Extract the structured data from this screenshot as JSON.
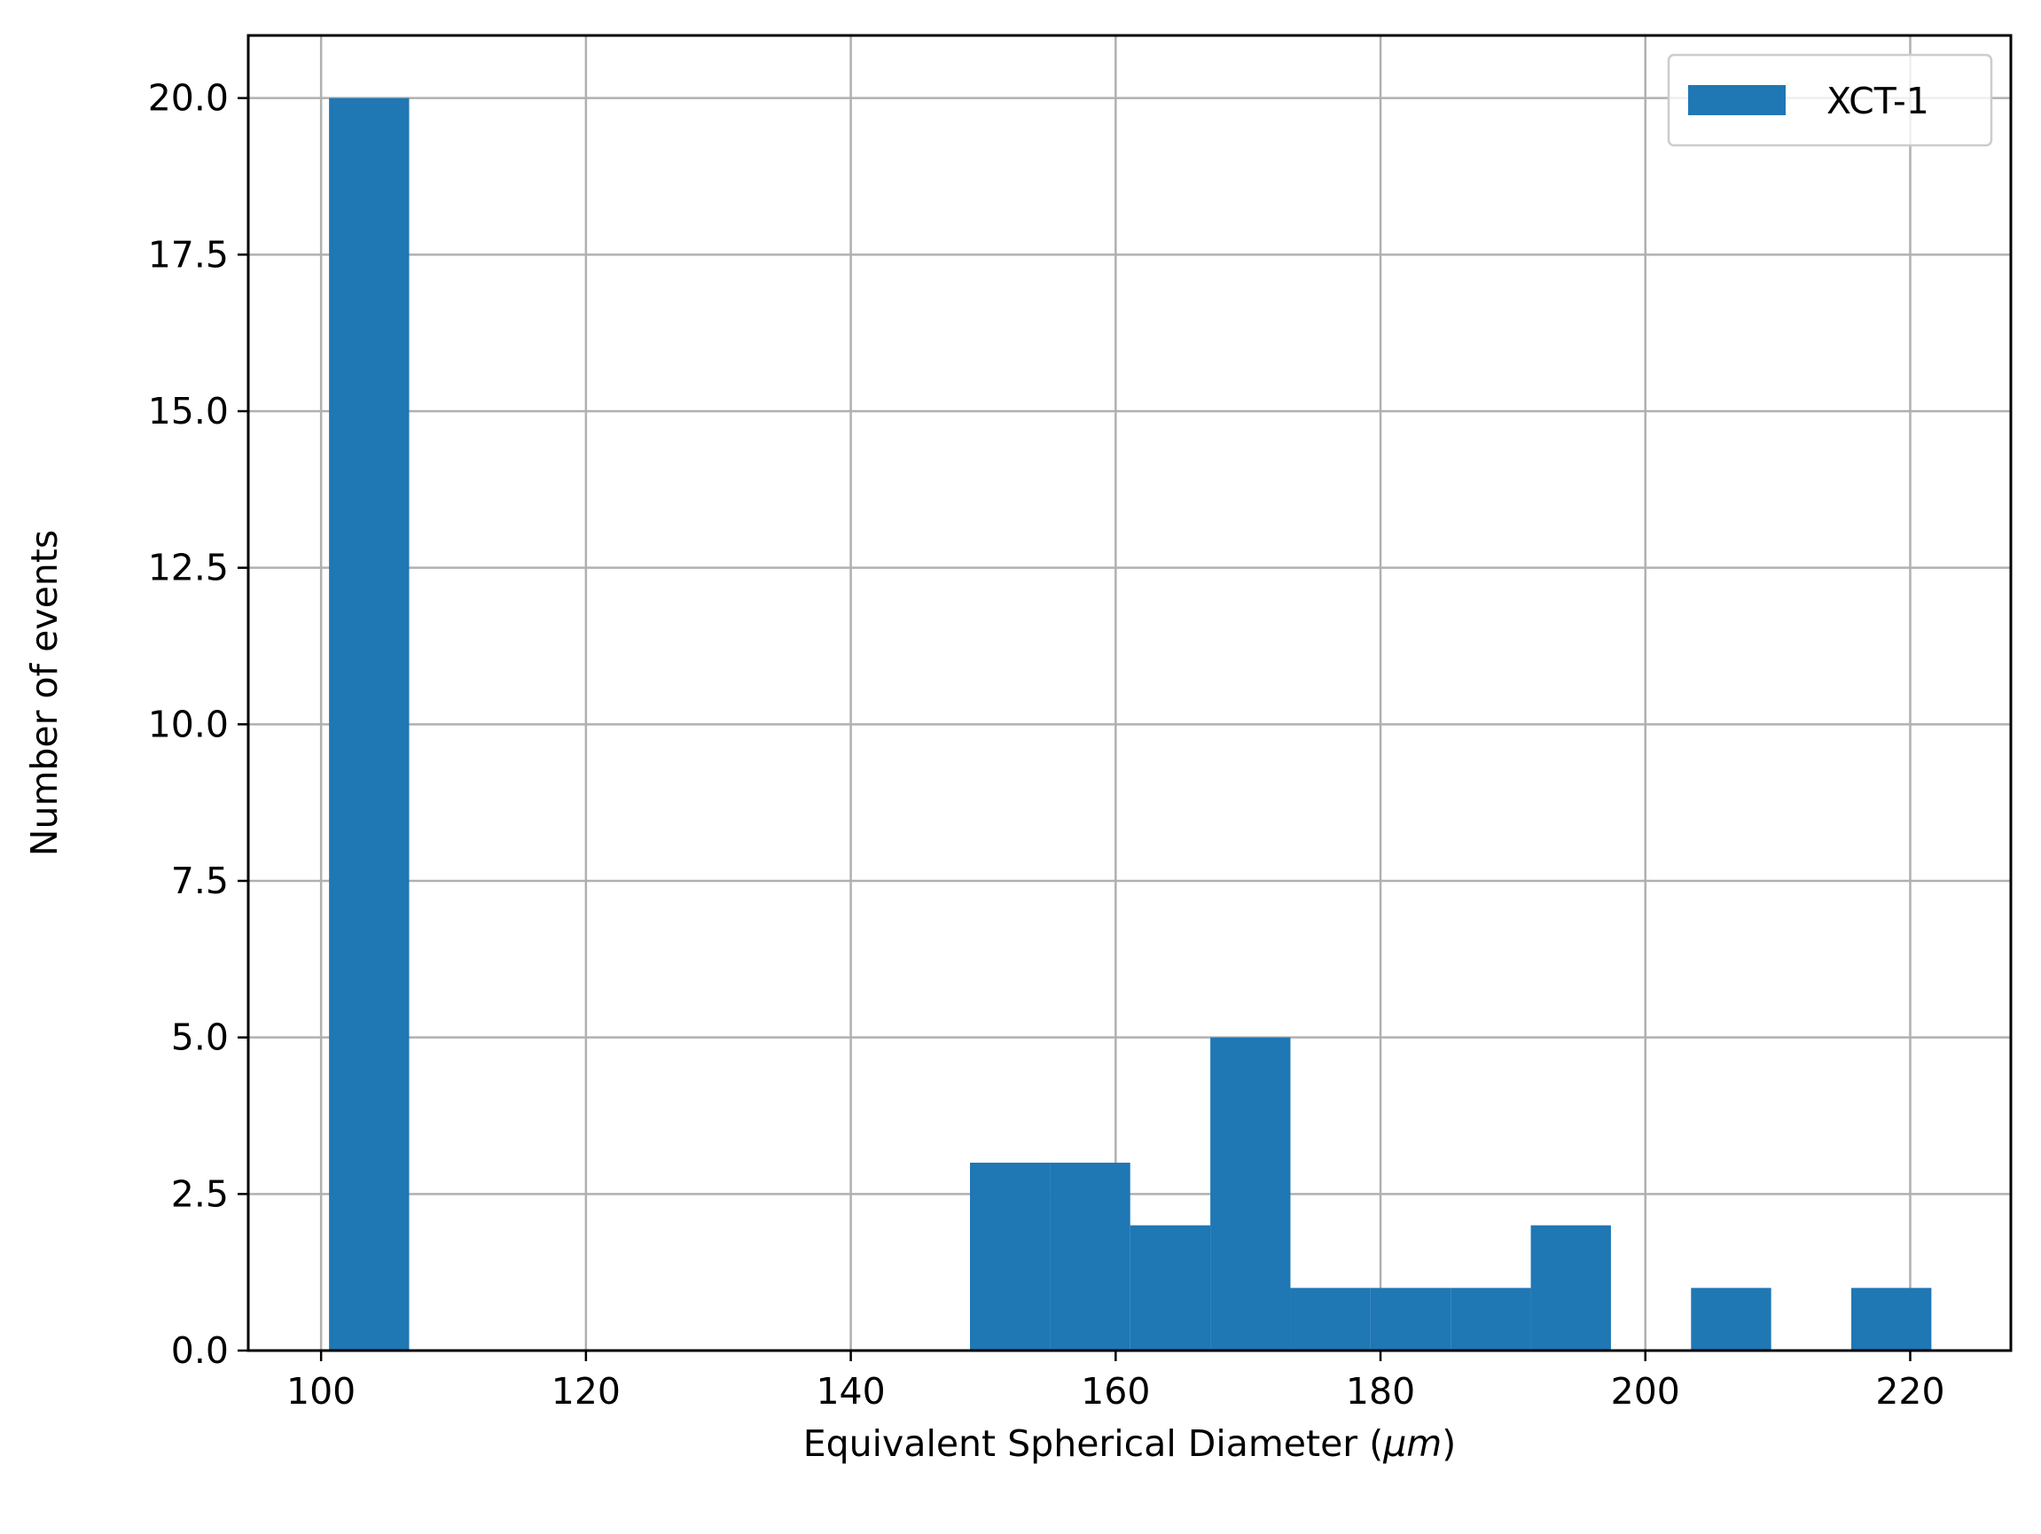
{
  "chart_data": {
    "type": "bar",
    "title": "",
    "xlabel": "Equivalent Spherical Diameter (",
    "xlabel_unit": "μm",
    "xlabel_close": ")",
    "ylabel": "Number of events",
    "xlim": [
      94.5,
      227.6
    ],
    "ylim": [
      0,
      21
    ],
    "grid": true,
    "x_ticks": [
      100,
      120,
      140,
      160,
      180,
      200,
      220
    ],
    "y_ticks": [
      0.0,
      2.5,
      5.0,
      7.5,
      10.0,
      12.5,
      15.0,
      17.5,
      20.0
    ],
    "x_tick_labels": [
      "100",
      "120",
      "140",
      "160",
      "180",
      "200",
      "220"
    ],
    "y_tick_labels": [
      "0.0",
      "2.5",
      "5.0",
      "7.5",
      "10.0",
      "12.5",
      "15.0",
      "17.5",
      "20.0"
    ],
    "bin_start": 100.6,
    "bin_width": 6.05,
    "series": [
      {
        "name": "XCT-1",
        "color": "#1f77b4",
        "values": [
          20,
          0,
          0,
          0,
          0,
          0,
          0,
          0,
          3,
          3,
          2,
          5,
          1,
          1,
          1,
          2,
          0,
          1,
          0,
          1
        ]
      }
    ],
    "legend": {
      "position": "top-right",
      "entries": [
        "XCT-1"
      ]
    }
  }
}
